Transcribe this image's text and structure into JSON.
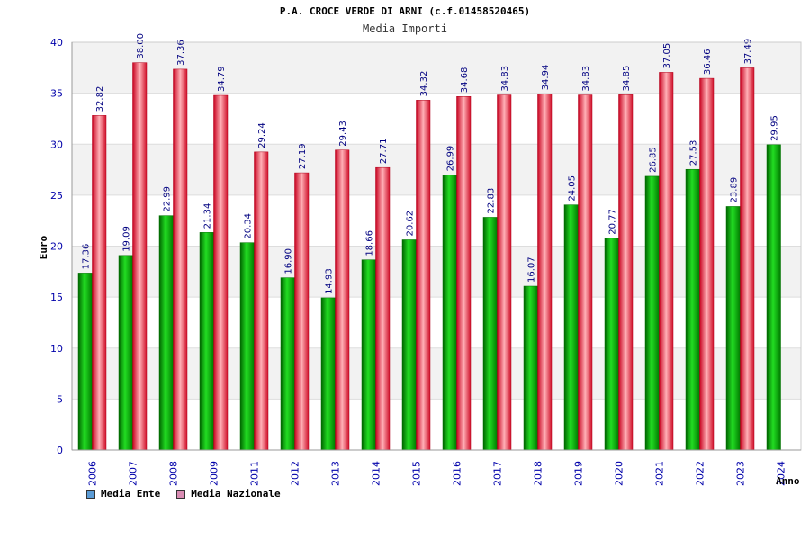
{
  "chart_data": {
    "type": "bar",
    "title": "P.A. CROCE VERDE DI ARNI (c.f.01458520465)",
    "subtitle": "Media Importi",
    "ylabel": "Euro",
    "xlabel": "Anno",
    "ylim": [
      0,
      40
    ],
    "yticks": [
      0,
      5,
      10,
      15,
      20,
      25,
      30,
      35,
      40
    ],
    "categories": [
      "2006",
      "2007",
      "2008",
      "2009",
      "2011",
      "2012",
      "2013",
      "2014",
      "2015",
      "2016",
      "2017",
      "2018",
      "2019",
      "2020",
      "2021",
      "2022",
      "2023",
      "2024"
    ],
    "series": [
      {
        "name": "Media Ente",
        "color": "#00b400",
        "values": [
          17.36,
          19.09,
          22.99,
          21.34,
          20.34,
          16.9,
          14.93,
          18.66,
          20.62,
          26.99,
          22.83,
          16.07,
          24.05,
          20.77,
          26.85,
          27.53,
          23.89,
          29.95
        ],
        "labels": [
          "17.36",
          "19.09",
          "22.99",
          "21.34",
          "20.34",
          "16.90",
          "14.93",
          "18.66",
          "20.62",
          "26.99",
          "22.83",
          "16.07",
          "24.05",
          "20.77",
          "26.85",
          "27.53",
          "23.89",
          "29.95"
        ]
      },
      {
        "name": "Media Nazionale",
        "color": "#e8283c",
        "values": [
          32.82,
          38.0,
          37.36,
          34.79,
          29.24,
          27.19,
          29.43,
          27.71,
          34.32,
          34.68,
          34.83,
          34.94,
          34.83,
          34.85,
          37.05,
          36.46,
          37.49,
          null
        ],
        "labels": [
          "32.82",
          "38.00",
          "37.36",
          "34.79",
          "29.24",
          "27.19",
          "29.43",
          "27.71",
          "34.32",
          "34.68",
          "34.83",
          "34.94",
          "34.83",
          "34.85",
          "37.05",
          "36.46",
          "37.49",
          ""
        ]
      }
    ],
    "legend": [
      {
        "label": "Media Ente",
        "color": "#5b9bd5"
      },
      {
        "label": "Media Nazionale",
        "color": "#d98cb3"
      }
    ]
  }
}
